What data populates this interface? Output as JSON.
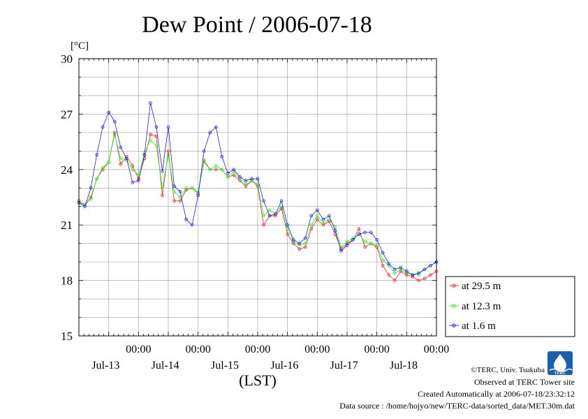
{
  "chart_data": {
    "type": "line",
    "title": "Dew Point / 2006-07-18",
    "xlabel": "(LST)",
    "ylabel": "[°C]",
    "ylim": [
      15,
      30
    ],
    "y_ticks": [
      15,
      18,
      21,
      24,
      27,
      30
    ],
    "x_range_days": [
      12.5,
      18.5
    ],
    "x_ticks": [
      {
        "time": "00:00",
        "date": "Jul-13",
        "day": 13.5
      },
      {
        "time": "00:00",
        "date": "Jul-14",
        "day": 14.5
      },
      {
        "time": "00:00",
        "date": "Jul-15",
        "day": 15.5
      },
      {
        "time": "00:00",
        "date": "Jul-16",
        "day": 16.5
      },
      {
        "time": "00:00",
        "date": "Jul-17",
        "day": 17.5
      },
      {
        "time": "00:00",
        "date": "Jul-18",
        "day": 18.5
      }
    ],
    "grid": true,
    "legend_position": "bottom-right, outside plot",
    "series": [
      {
        "name": "at 29.5 m",
        "color": "#ff0000",
        "x": [
          12.5,
          12.6,
          12.7,
          12.8,
          12.9,
          13.0,
          13.1,
          13.2,
          13.3,
          13.4,
          13.5,
          13.6,
          13.7,
          13.8,
          13.9,
          14.0,
          14.1,
          14.2,
          14.3,
          14.4,
          14.5,
          14.6,
          14.7,
          14.8,
          14.9,
          15.0,
          15.1,
          15.2,
          15.3,
          15.4,
          15.5,
          15.6,
          15.7,
          15.8,
          15.9,
          16.0,
          16.1,
          16.2,
          16.3,
          16.4,
          16.5,
          16.6,
          16.7,
          16.8,
          16.9,
          17.0,
          17.1,
          17.2,
          17.3,
          17.4,
          17.5,
          17.6,
          17.7,
          17.8,
          17.9,
          18.0,
          18.1,
          18.2,
          18.3,
          18.4,
          18.5
        ],
        "values": [
          22.3,
          22.1,
          22.5,
          23.5,
          24.0,
          24.4,
          26.0,
          24.3,
          24.7,
          24.2,
          23.5,
          24.6,
          25.9,
          25.8,
          22.6,
          25.0,
          22.3,
          22.3,
          22.9,
          23.0,
          22.7,
          24.5,
          24.0,
          24.0,
          24.0,
          23.6,
          23.7,
          23.4,
          23.1,
          23.4,
          23.1,
          21.0,
          21.5,
          21.5,
          21.9,
          20.5,
          20.0,
          19.7,
          19.8,
          20.8,
          21.3,
          21.0,
          21.2,
          20.5,
          19.7,
          20.0,
          20.2,
          20.8,
          19.8,
          20.0,
          19.8,
          18.8,
          18.3,
          18.0,
          18.5,
          18.3,
          18.2,
          18.0,
          18.1,
          18.3,
          18.5
        ]
      },
      {
        "name": "at 12.3 m",
        "color": "#00ff00",
        "x": [
          12.5,
          12.6,
          12.7,
          12.8,
          12.9,
          13.0,
          13.1,
          13.2,
          13.3,
          13.4,
          13.5,
          13.6,
          13.7,
          13.8,
          13.9,
          14.0,
          14.1,
          14.2,
          14.3,
          14.4,
          14.5,
          14.6,
          14.7,
          14.8,
          14.9,
          15.0,
          15.1,
          15.2,
          15.3,
          15.4,
          15.5,
          15.6,
          15.7,
          15.8,
          15.9,
          16.0,
          16.1,
          16.2,
          16.3,
          16.4,
          16.5,
          16.6,
          16.7,
          16.8,
          16.9,
          17.0,
          17.1,
          17.2,
          17.3,
          17.4,
          17.5,
          17.6,
          17.7,
          17.8,
          17.9,
          18.0,
          18.1,
          18.2,
          18.3,
          18.4,
          18.5
        ],
        "values": [
          22.2,
          22.1,
          22.4,
          23.5,
          24.1,
          24.4,
          25.9,
          24.6,
          24.5,
          24.0,
          23.7,
          24.9,
          25.6,
          25.3,
          23.0,
          24.8,
          22.8,
          22.5,
          23.0,
          23.0,
          22.8,
          24.4,
          24.0,
          24.2,
          24.0,
          23.6,
          23.9,
          23.5,
          23.2,
          23.4,
          23.2,
          21.5,
          21.8,
          21.6,
          22.0,
          20.8,
          20.1,
          19.9,
          20.0,
          21.0,
          21.5,
          21.1,
          21.3,
          20.9,
          19.8,
          20.1,
          20.3,
          20.5,
          20.1,
          20.0,
          19.9,
          19.1,
          18.8,
          18.4,
          18.6,
          18.4,
          18.3,
          18.3,
          18.6,
          18.8,
          19.0
        ]
      },
      {
        "name": "at 1.6 m",
        "color": "#0000ff",
        "x": [
          12.5,
          12.6,
          12.7,
          12.8,
          12.9,
          13.0,
          13.1,
          13.2,
          13.3,
          13.4,
          13.5,
          13.6,
          13.7,
          13.8,
          13.9,
          14.0,
          14.1,
          14.2,
          14.3,
          14.4,
          14.5,
          14.6,
          14.7,
          14.8,
          14.9,
          15.0,
          15.1,
          15.2,
          15.3,
          15.4,
          15.5,
          15.6,
          15.7,
          15.8,
          15.9,
          16.0,
          16.1,
          16.2,
          16.3,
          16.4,
          16.5,
          16.6,
          16.7,
          16.8,
          16.9,
          17.0,
          17.1,
          17.2,
          17.3,
          17.4,
          17.5,
          17.6,
          17.7,
          17.8,
          17.9,
          18.0,
          18.1,
          18.2,
          18.3,
          18.4,
          18.5
        ],
        "values": [
          22.2,
          22.0,
          23.0,
          24.8,
          26.3,
          27.1,
          26.6,
          25.2,
          24.6,
          23.3,
          23.4,
          24.8,
          27.6,
          26.3,
          23.9,
          26.3,
          23.1,
          22.8,
          21.3,
          21.0,
          22.6,
          25.0,
          26.0,
          26.3,
          24.7,
          23.8,
          24.0,
          23.6,
          23.4,
          23.5,
          23.5,
          22.3,
          21.5,
          21.6,
          22.3,
          21.0,
          20.2,
          20.0,
          20.3,
          21.5,
          21.8,
          21.3,
          21.5,
          20.7,
          19.6,
          19.9,
          20.2,
          20.5,
          20.6,
          20.6,
          20.2,
          19.5,
          18.9,
          18.6,
          18.7,
          18.5,
          18.3,
          18.4,
          18.6,
          18.8,
          19.0
        ]
      }
    ]
  },
  "credits": {
    "copyright": "©TERC, Univ. Tsukuba",
    "observed": "Observed at TERC Tower site",
    "created": "Created Automatically at 2006-07-18/23:32:12",
    "source": "Data source : /home/hojyo/new/TERC-data/sorted_data/MET.30m.dat",
    "logo_text": "TERC"
  }
}
